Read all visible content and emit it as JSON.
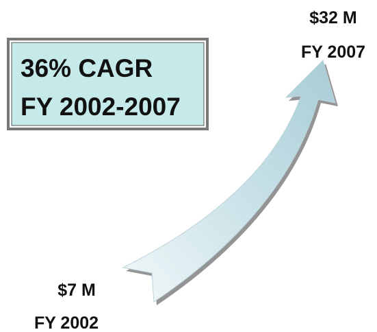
{
  "callout": {
    "line1": "36% CAGR",
    "line2": "FY 2002-2007"
  },
  "start": {
    "amount": "$7 M",
    "year": "FY 2002"
  },
  "end": {
    "amount": "$32 M",
    "year": "FY 2007"
  }
}
